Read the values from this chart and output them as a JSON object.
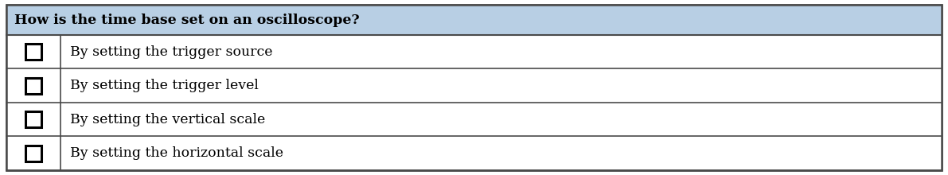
{
  "title": "How is the time base set on an oscilloscope?",
  "options": [
    "By setting the trigger source",
    "By setting the trigger level",
    "By setting the vertical scale",
    "By setting the horizontal scale"
  ],
  "header_bg": "#b8cfe4",
  "row_bg": "#ffffff",
  "border_color": "#4a4a4a",
  "title_fontsize": 12.5,
  "option_fontsize": 12.5,
  "font_family": "serif"
}
